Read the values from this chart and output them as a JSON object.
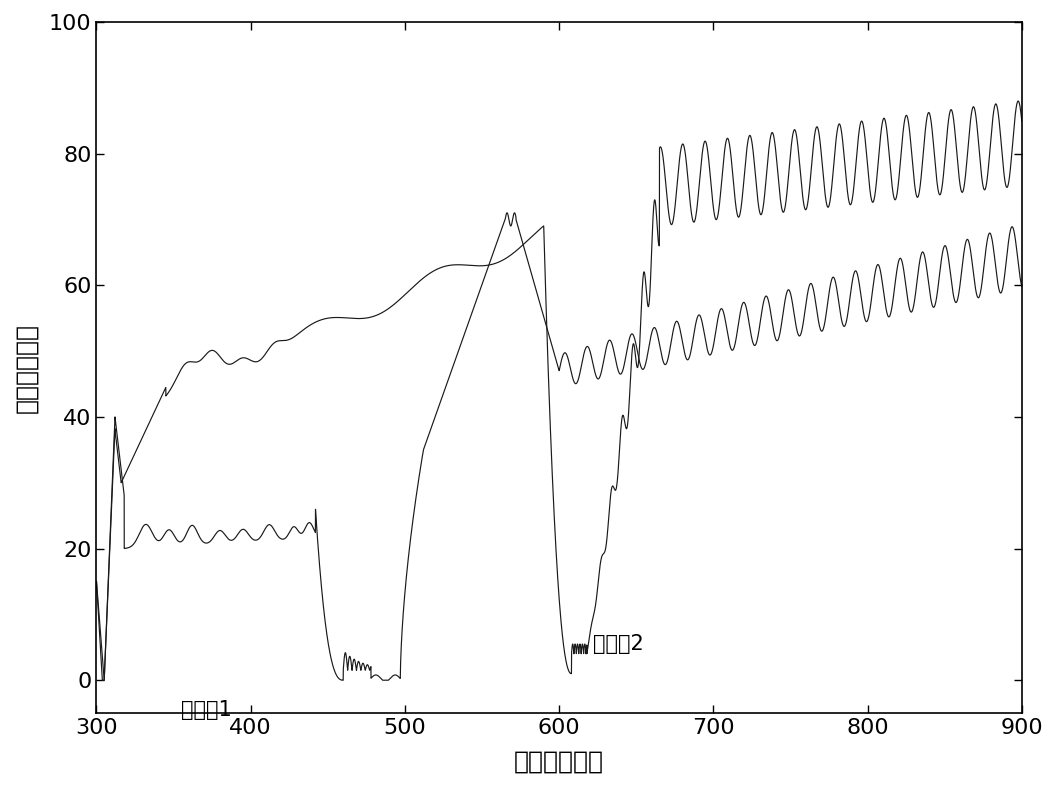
{
  "title": "",
  "xlabel": "波长（纳米）",
  "ylabel": "透射率（％）",
  "xlim": [
    300,
    900
  ],
  "ylim": [
    -5,
    100
  ],
  "xticks": [
    300,
    400,
    500,
    600,
    700,
    800,
    900
  ],
  "yticks": [
    0,
    20,
    40,
    60,
    80,
    100
  ],
  "background_color": "#ffffff",
  "line_color": "#1a1a1a",
  "ann1_text_cn": "实施例",
  "ann1_text_num": "1",
  "ann2_text_cn": "实施例",
  "ann2_text_num": "2",
  "ann1_x": 355,
  "ann1_y": -3,
  "ann2_x": 622,
  "ann2_y": 4
}
